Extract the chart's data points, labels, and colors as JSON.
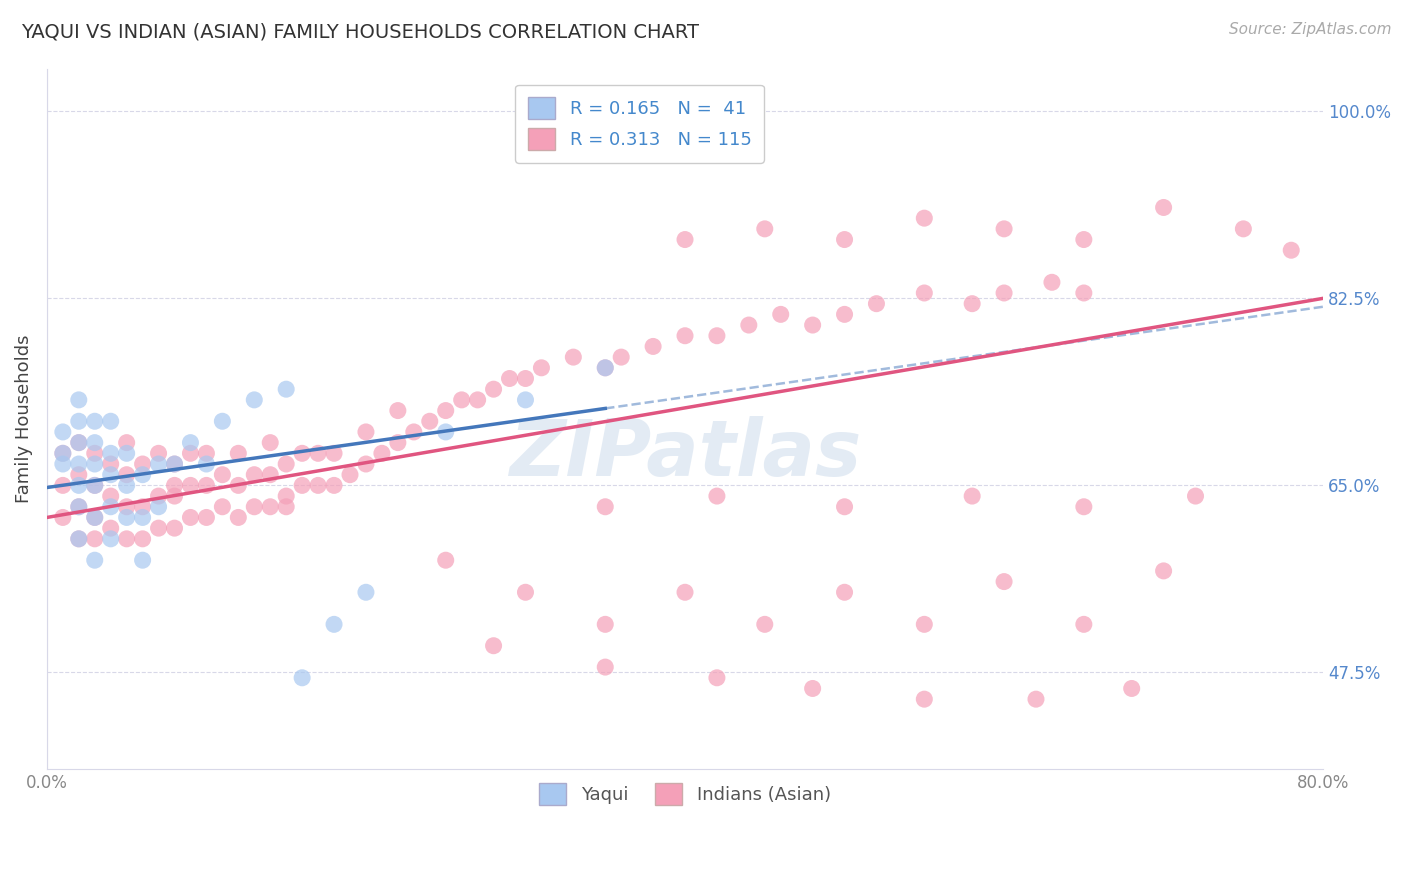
{
  "title": "YAQUI VS INDIAN (ASIAN) FAMILY HOUSEHOLDS CORRELATION CHART",
  "source": "Source: ZipAtlas.com",
  "ylabel": "Family Households",
  "ytick_labels": [
    "47.5%",
    "65.0%",
    "82.5%",
    "100.0%"
  ],
  "ytick_values": [
    0.475,
    0.65,
    0.825,
    1.0
  ],
  "xlim": [
    0.0,
    0.8
  ],
  "ylim": [
    0.385,
    1.04
  ],
  "yaqui_R": 0.165,
  "yaqui_N": 41,
  "indian_R": 0.313,
  "indian_N": 115,
  "yaqui_color": "#a8c8f0",
  "indian_color": "#f4a0b8",
  "yaqui_line_color": "#4477bb",
  "indian_line_color": "#e05580",
  "legend_text_color": "#4488cc",
  "background_color": "#ffffff",
  "grid_color": "#d8d8e8",
  "watermark": "ZIPatlas",
  "yaqui_x": [
    0.01,
    0.01,
    0.01,
    0.02,
    0.02,
    0.02,
    0.02,
    0.02,
    0.02,
    0.02,
    0.03,
    0.03,
    0.03,
    0.03,
    0.03,
    0.03,
    0.04,
    0.04,
    0.04,
    0.04,
    0.04,
    0.05,
    0.05,
    0.05,
    0.06,
    0.06,
    0.06,
    0.07,
    0.07,
    0.08,
    0.09,
    0.1,
    0.11,
    0.13,
    0.15,
    0.16,
    0.18,
    0.2,
    0.25,
    0.3,
    0.35
  ],
  "yaqui_y": [
    0.67,
    0.68,
    0.7,
    0.6,
    0.63,
    0.65,
    0.67,
    0.69,
    0.71,
    0.73,
    0.58,
    0.62,
    0.65,
    0.67,
    0.69,
    0.71,
    0.6,
    0.63,
    0.66,
    0.68,
    0.71,
    0.62,
    0.65,
    0.68,
    0.58,
    0.62,
    0.66,
    0.63,
    0.67,
    0.67,
    0.69,
    0.67,
    0.71,
    0.73,
    0.74,
    0.47,
    0.52,
    0.55,
    0.7,
    0.73,
    0.76
  ],
  "indian_x": [
    0.01,
    0.01,
    0.01,
    0.02,
    0.02,
    0.02,
    0.02,
    0.03,
    0.03,
    0.03,
    0.03,
    0.04,
    0.04,
    0.04,
    0.05,
    0.05,
    0.05,
    0.05,
    0.06,
    0.06,
    0.06,
    0.07,
    0.07,
    0.07,
    0.08,
    0.08,
    0.08,
    0.09,
    0.09,
    0.09,
    0.1,
    0.1,
    0.1,
    0.11,
    0.11,
    0.12,
    0.12,
    0.12,
    0.13,
    0.13,
    0.14,
    0.14,
    0.14,
    0.15,
    0.15,
    0.16,
    0.16,
    0.17,
    0.17,
    0.18,
    0.18,
    0.19,
    0.2,
    0.2,
    0.21,
    0.22,
    0.22,
    0.23,
    0.24,
    0.25,
    0.26,
    0.27,
    0.28,
    0.29,
    0.3,
    0.31,
    0.33,
    0.35,
    0.36,
    0.38,
    0.4,
    0.42,
    0.44,
    0.46,
    0.48,
    0.5,
    0.52,
    0.55,
    0.58,
    0.6,
    0.63,
    0.65,
    0.08,
    0.15,
    0.25,
    0.3,
    0.35,
    0.4,
    0.45,
    0.5,
    0.55,
    0.6,
    0.65,
    0.7,
    0.28,
    0.35,
    0.42,
    0.48,
    0.55,
    0.62,
    0.68,
    0.4,
    0.45,
    0.5,
    0.55,
    0.6,
    0.65,
    0.7,
    0.75,
    0.78,
    0.35,
    0.42,
    0.5,
    0.58,
    0.65,
    0.72
  ],
  "indian_y": [
    0.62,
    0.65,
    0.68,
    0.6,
    0.63,
    0.66,
    0.69,
    0.6,
    0.62,
    0.65,
    0.68,
    0.61,
    0.64,
    0.67,
    0.6,
    0.63,
    0.66,
    0.69,
    0.6,
    0.63,
    0.67,
    0.61,
    0.64,
    0.68,
    0.61,
    0.64,
    0.67,
    0.62,
    0.65,
    0.68,
    0.62,
    0.65,
    0.68,
    0.63,
    0.66,
    0.62,
    0.65,
    0.68,
    0.63,
    0.66,
    0.63,
    0.66,
    0.69,
    0.64,
    0.67,
    0.65,
    0.68,
    0.65,
    0.68,
    0.65,
    0.68,
    0.66,
    0.67,
    0.7,
    0.68,
    0.69,
    0.72,
    0.7,
    0.71,
    0.72,
    0.73,
    0.73,
    0.74,
    0.75,
    0.75,
    0.76,
    0.77,
    0.76,
    0.77,
    0.78,
    0.79,
    0.79,
    0.8,
    0.81,
    0.8,
    0.81,
    0.82,
    0.83,
    0.82,
    0.83,
    0.84,
    0.83,
    0.65,
    0.63,
    0.58,
    0.55,
    0.52,
    0.55,
    0.52,
    0.55,
    0.52,
    0.56,
    0.52,
    0.57,
    0.5,
    0.48,
    0.47,
    0.46,
    0.45,
    0.45,
    0.46,
    0.88,
    0.89,
    0.88,
    0.9,
    0.89,
    0.88,
    0.91,
    0.89,
    0.87,
    0.63,
    0.64,
    0.63,
    0.64,
    0.63,
    0.64
  ],
  "yaqui_line_x0": 0.0,
  "yaqui_line_y0": 0.648,
  "yaqui_line_x1": 0.35,
  "yaqui_line_y1": 0.722,
  "indian_line_x0": 0.0,
  "indian_line_y0": 0.62,
  "indian_line_x1": 0.8,
  "indian_line_y1": 0.825
}
